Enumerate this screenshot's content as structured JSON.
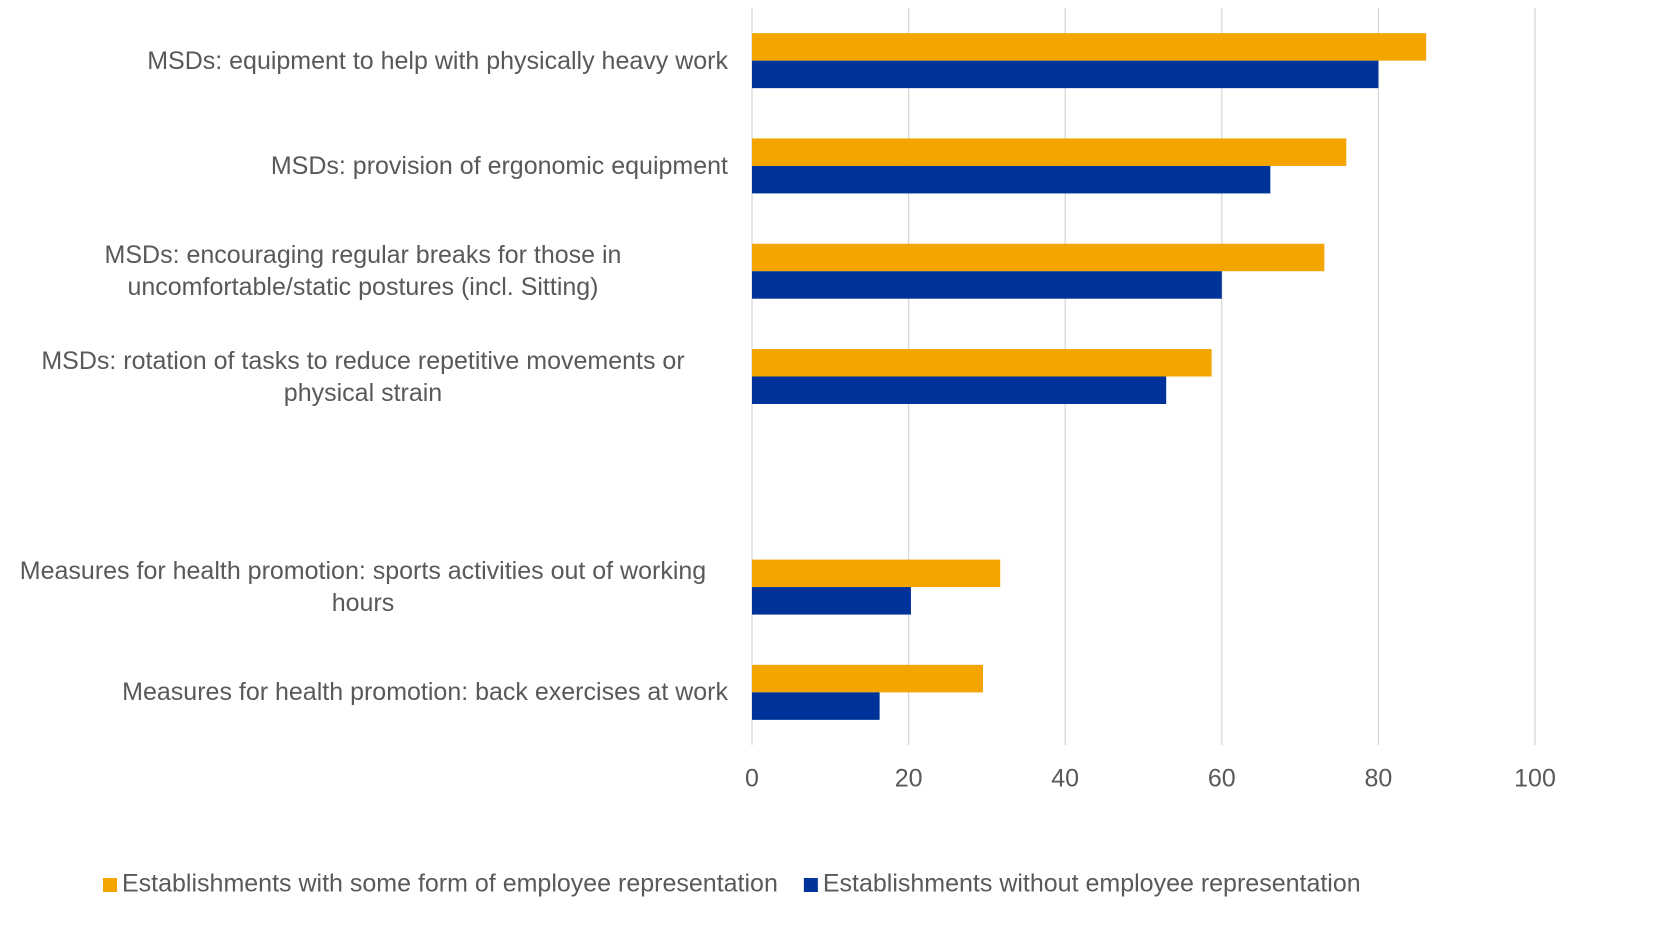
{
  "chart_data": {
    "type": "hbar",
    "categories": [
      "MSDs: equipment to help with physically heavy work",
      "MSDs: provision of ergonomic equipment",
      "MSDs: encouraging regular breaks for those in uncomfortable/static postures (incl. Sitting)",
      "MSDs: rotation of tasks to reduce repetitive movements or physical strain",
      null,
      "Measures for health promotion: sports activities out of working hours",
      "Measures for health promotion: back exercises at work"
    ],
    "series": [
      {
        "name": "Establishments with some form of employee representation",
        "color": "#f5a500",
        "values": [
          86.1,
          75.9,
          73.1,
          58.7,
          null,
          31.7,
          29.5
        ]
      },
      {
        "name": "Establishments without employee representation",
        "color": "#003399",
        "values": [
          80.0,
          66.2,
          60.0,
          52.9,
          null,
          20.3,
          16.3
        ]
      }
    ],
    "xlim": [
      0,
      100
    ],
    "xticks": [
      0,
      20,
      40,
      60,
      80,
      100
    ],
    "grid": true,
    "legend": "bottom"
  }
}
